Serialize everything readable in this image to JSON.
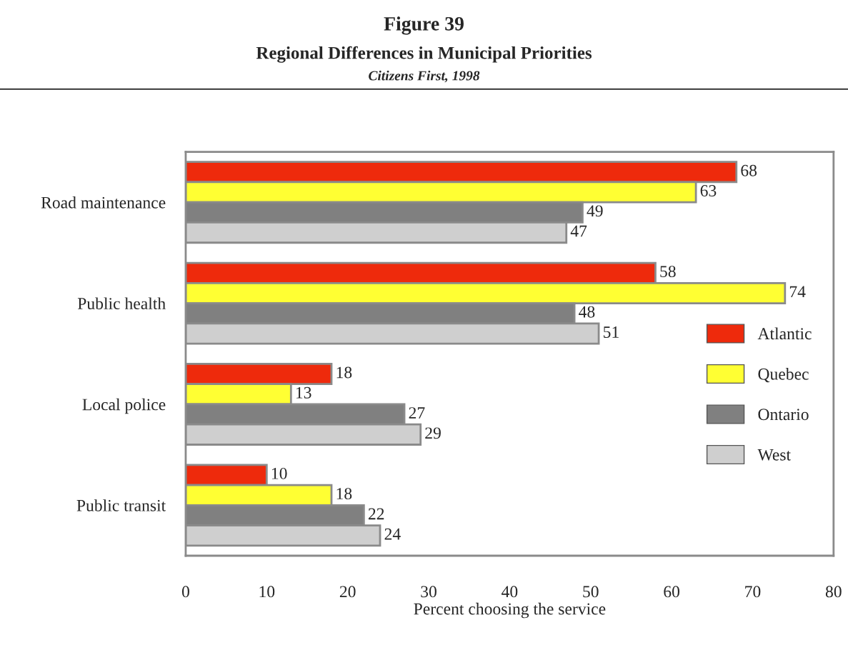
{
  "chart_data": {
    "type": "bar",
    "orientation": "horizontal",
    "title": "Figure 39",
    "subtitle": "Regional Differences in Municipal Priorities",
    "annotations": [
      "Citizens First, 1998"
    ],
    "xlabel": "Percent choosing the service",
    "categories": [
      "Road maintenance",
      "Public health",
      "Local police",
      "Public transit"
    ],
    "series": [
      {
        "name": "Atlantic",
        "color": "#ee2a0c",
        "values": [
          68,
          58,
          18,
          10
        ]
      },
      {
        "name": "Quebec",
        "color": "#ffff33",
        "values": [
          63,
          74,
          13,
          18
        ]
      },
      {
        "name": "Ontario",
        "color": "#808080",
        "values": [
          49,
          48,
          27,
          22
        ]
      },
      {
        "name": "West",
        "color": "#cfcfcf",
        "values": [
          47,
          51,
          29,
          24
        ]
      }
    ],
    "xlim": [
      0,
      80
    ],
    "xticks": [
      0,
      10,
      20,
      30,
      40,
      50,
      60,
      70,
      80
    ],
    "grid": false,
    "legend": "right",
    "data_labels": true
  }
}
